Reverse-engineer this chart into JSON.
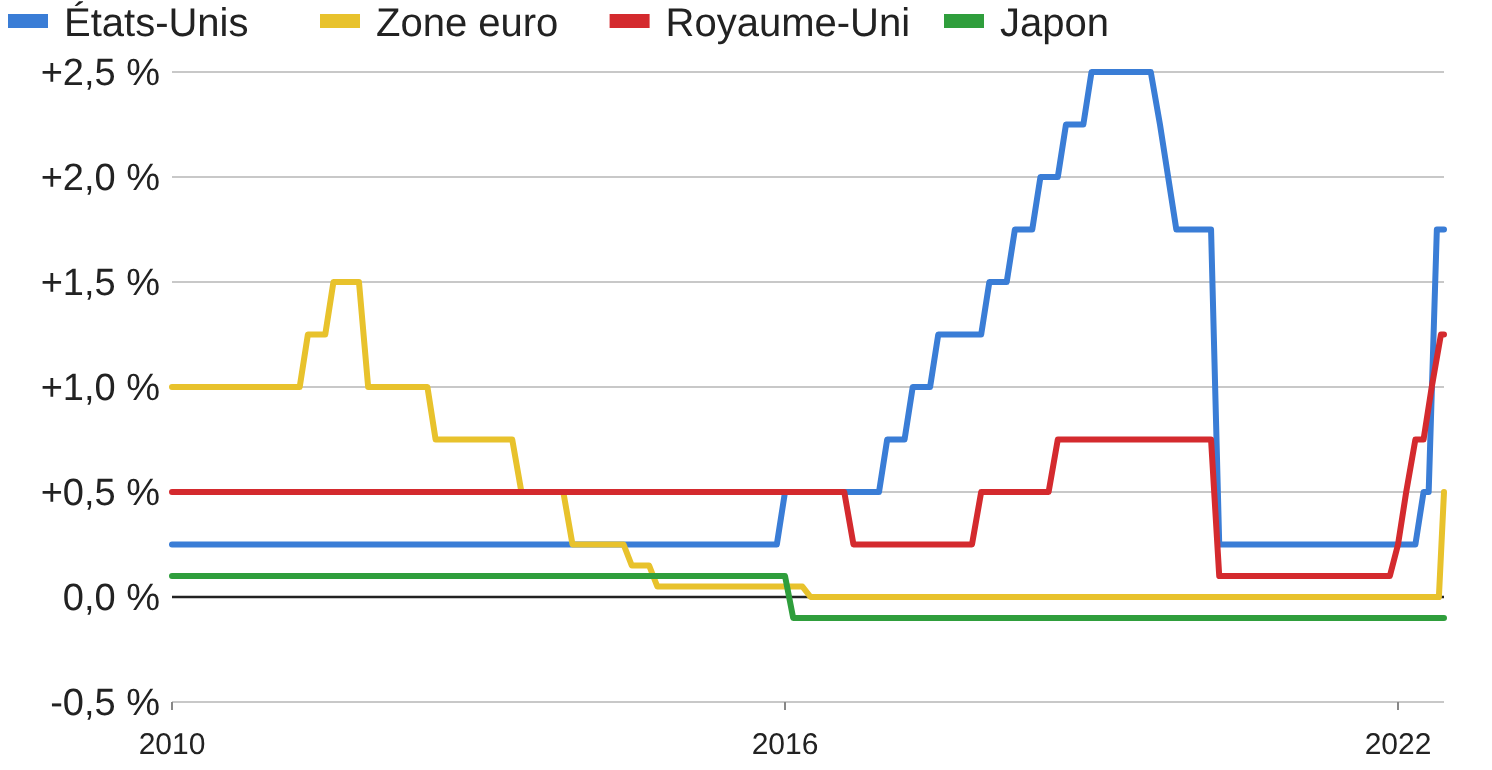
{
  "chart_data": {
    "type": "line",
    "xlim": [
      2010,
      2022.45
    ],
    "xticks": [
      2010,
      2016,
      2022
    ],
    "ylim": [
      -0.5,
      2.5
    ],
    "yticks": [
      {
        "value": -0.5,
        "label": "-0,5 %"
      },
      {
        "value": 0,
        "label": "0,0 %"
      },
      {
        "value": 0.5,
        "label": "+0,5 %"
      },
      {
        "value": 1,
        "label": "+1,0 %"
      },
      {
        "value": 1.5,
        "label": "+1,5 %"
      },
      {
        "value": 2,
        "label": "+2,0 %"
      },
      {
        "value": 2.5,
        "label": "+2,5 %"
      }
    ],
    "grid": "y",
    "legend": "top",
    "marker": "none",
    "line_style": "solid",
    "ref_lines": [
      {
        "axis": "y",
        "value": 0,
        "color": "#222222"
      }
    ],
    "series": [
      {
        "name": "États-Unis",
        "color": "#3a7dd6",
        "x": [
          2010,
          2015.92,
          2016.0,
          2016.92,
          2017.0,
          2017.17,
          2017.25,
          2017.42,
          2017.5,
          2017.92,
          2018.0,
          2018.17,
          2018.25,
          2018.42,
          2018.5,
          2018.67,
          2018.75,
          2018.92,
          2019.0,
          2019.58,
          2019.67,
          2019.75,
          2019.83,
          2020.17,
          2020.25,
          2022.17,
          2022.25,
          2022.3,
          2022.38,
          2022.45
        ],
        "values": [
          0.25,
          0.25,
          0.5,
          0.5,
          0.75,
          0.75,
          1.0,
          1.0,
          1.25,
          1.25,
          1.5,
          1.5,
          1.75,
          1.75,
          2.0,
          2.0,
          2.25,
          2.25,
          2.5,
          2.5,
          2.25,
          2.0,
          1.75,
          1.75,
          0.25,
          0.25,
          0.5,
          0.5,
          1.75,
          1.75
        ]
      },
      {
        "name": "Zone euro",
        "color": "#e8c22c",
        "x": [
          2010,
          2011.25,
          2011.33,
          2011.5,
          2011.58,
          2011.83,
          2011.92,
          2012.5,
          2012.58,
          2013.33,
          2013.42,
          2013.83,
          2013.92,
          2014.42,
          2014.5,
          2014.67,
          2014.75,
          2016.17,
          2016.25,
          2022.4,
          2022.45
        ],
        "values": [
          1.0,
          1.0,
          1.25,
          1.25,
          1.5,
          1.5,
          1.0,
          1.0,
          0.75,
          0.75,
          0.5,
          0.5,
          0.25,
          0.25,
          0.15,
          0.15,
          0.05,
          0.05,
          0.0,
          0.0,
          0.5
        ]
      },
      {
        "name": "Royaume-Uni",
        "color": "#d42a2e",
        "x": [
          2010,
          2016.58,
          2016.67,
          2017.83,
          2017.92,
          2018.58,
          2018.67,
          2020.17,
          2020.25,
          2021.92,
          2022.0,
          2022.08,
          2022.17,
          2022.25,
          2022.33,
          2022.42,
          2022.45
        ],
        "values": [
          0.5,
          0.5,
          0.25,
          0.25,
          0.5,
          0.5,
          0.75,
          0.75,
          0.1,
          0.1,
          0.25,
          0.5,
          0.75,
          0.75,
          1.0,
          1.25,
          1.25
        ]
      },
      {
        "name": "Japon",
        "color": "#2f9e3c",
        "x": [
          2010,
          2016.0,
          2016.08,
          2022.45
        ],
        "values": [
          0.1,
          0.1,
          -0.1,
          -0.1
        ]
      }
    ]
  }
}
